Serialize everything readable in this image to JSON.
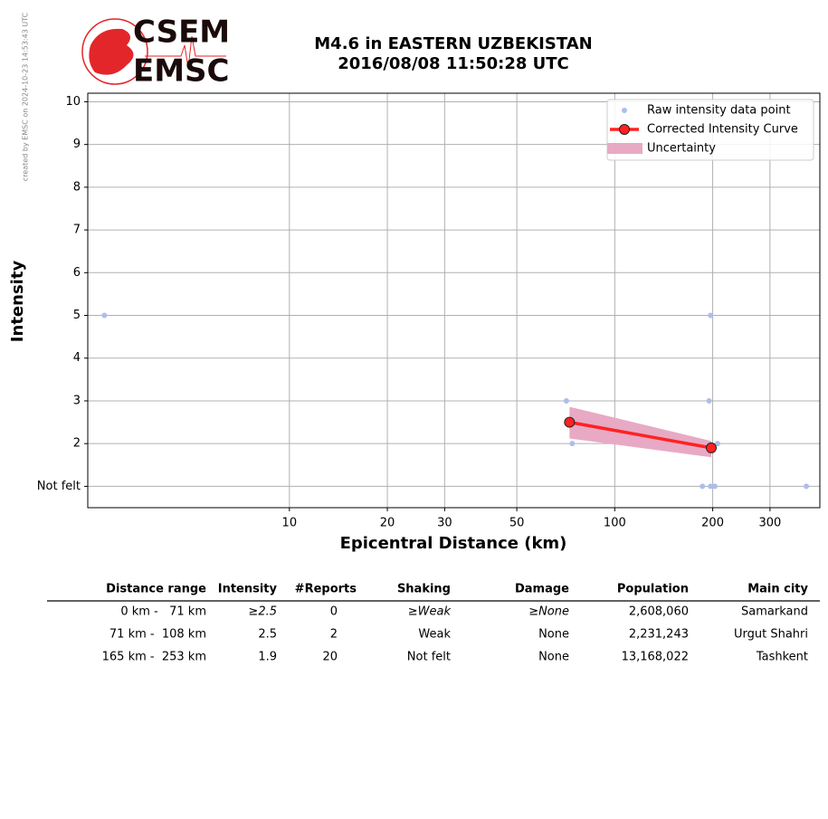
{
  "credit": "created by EMSC on 2024-10-23 14:53:43 UTC",
  "logo": {
    "top": "CSEM",
    "bottom": "EMSC"
  },
  "chart_data": {
    "type": "line",
    "title": "M4.6 in EASTERN UZBEKISTAN",
    "subtitle": "2016/08/08 11:50:28 UTC",
    "x_label": "Epicentral Distance (km)",
    "y_label": "Intensity",
    "xscale": "log",
    "xlim": [
      2.4,
      427
    ],
    "ylim": [
      0.5,
      10.2
    ],
    "xticks": [
      10,
      20,
      30,
      50,
      100,
      200,
      300
    ],
    "yticks": [
      {
        "value": 1,
        "label": "Not felt"
      },
      2,
      3,
      4,
      5,
      6,
      7,
      8,
      9,
      10
    ],
    "grid": true,
    "legend": "upper right",
    "series": [
      {
        "name": "Raw intensity data point",
        "type": "scatter",
        "color": "#aebde9",
        "x": [
          2.7,
          197,
          195,
          71,
          74,
          207,
          186,
          197,
          203,
          388
        ],
        "values": [
          5,
          5,
          3,
          3,
          2,
          2,
          1,
          1,
          1,
          1
        ]
      },
      {
        "name": "Corrected Intensity Curve",
        "type": "line",
        "color": "#ff2222",
        "x": [
          72.6,
          198
        ],
        "values": [
          2.5,
          1.9
        ]
      },
      {
        "name": "Uncertainty",
        "type": "band",
        "color": "#e8a9c4",
        "x": [
          72.6,
          198
        ],
        "lower": [
          2.12,
          1.68
        ],
        "upper": [
          2.86,
          2.06
        ]
      }
    ]
  },
  "table": {
    "header": [
      "Distance range",
      "Intensity",
      "#Reports",
      "Shaking",
      "Damage",
      "Population",
      "Main city"
    ],
    "rows": [
      [
        "0 km -   71 km",
        "≥2.5",
        "0",
        "≥Weak",
        "≥None",
        "2,608,060",
        "Samarkand"
      ],
      [
        "71 km -  108 km",
        "2.5",
        "2",
        "Weak",
        "None",
        "2,231,243",
        "Urgut Shahri"
      ],
      [
        "165 km -  253 km",
        "1.9",
        "20",
        "Not felt",
        "None",
        "13,168,022",
        "Tashkent"
      ]
    ]
  }
}
